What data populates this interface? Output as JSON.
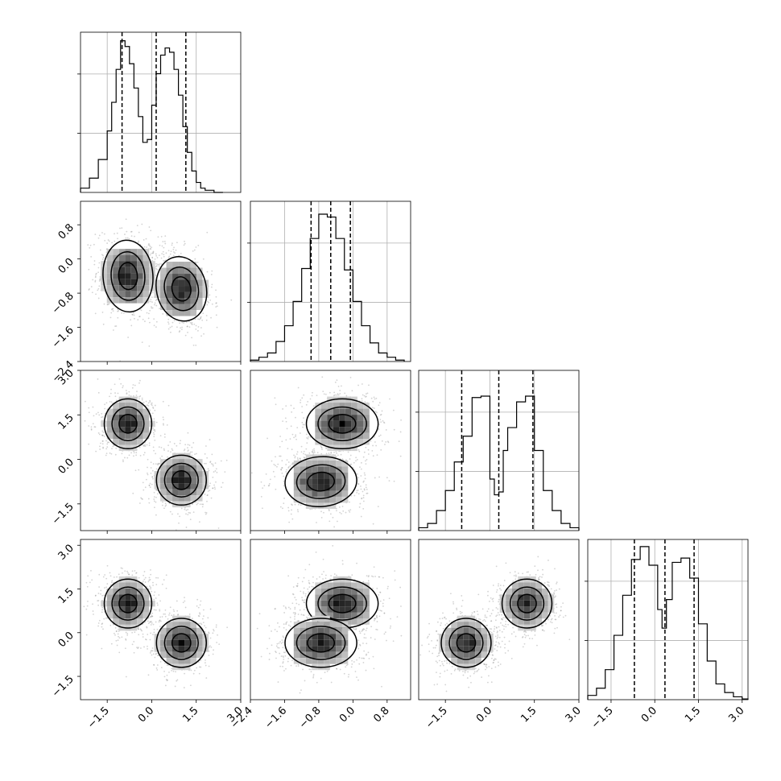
{
  "chart_data": {
    "type": "corner",
    "parameters": 4,
    "ranges": [
      [
        -2.4,
        3.0
      ],
      [
        -2.4,
        1.35
      ],
      [
        -2.4,
        3.0
      ],
      [
        -2.3,
        3.2
      ]
    ],
    "ticks": {
      "p0": [
        "−1.5",
        "0.0",
        "1.5",
        "3.0"
      ],
      "p1": [
        "−2.4",
        "−1.6",
        "−0.8",
        "0.0",
        "0.8"
      ],
      "p2": [
        "−1.5",
        "0.0",
        "1.5",
        "3.0"
      ],
      "p3": [
        "−1.5",
        "0.0",
        "1.5",
        "3.0"
      ]
    },
    "tick_values": {
      "p0": [
        -1.5,
        0.0,
        1.5,
        3.0
      ],
      "p1": [
        -2.4,
        -1.6,
        -0.8,
        0.0,
        0.8
      ],
      "p2": [
        -1.5,
        0.0,
        1.5,
        3.0
      ],
      "p3": [
        -1.5,
        0.0,
        1.5,
        3.0
      ]
    },
    "diagonal": [
      {
        "param": 0,
        "quantiles": [
          -1.0,
          0.15,
          1.15
        ],
        "bin_edges": [
          -2.4,
          -2.1,
          -1.8,
          -1.5,
          -1.35,
          -1.2,
          -1.05,
          -0.9,
          -0.75,
          -0.6,
          -0.45,
          -0.3,
          -0.15,
          0.0,
          0.15,
          0.3,
          0.45,
          0.6,
          0.75,
          0.9,
          1.05,
          1.2,
          1.35,
          1.5,
          1.65,
          1.8,
          2.1,
          2.4
        ],
        "counts": [
          0.3,
          1.0,
          2.3,
          4.3,
          6.3,
          8.6,
          10.6,
          10.2,
          9.0,
          7.3,
          5.3,
          3.5,
          3.7,
          6.1,
          8.3,
          9.6,
          10.1,
          9.8,
          8.6,
          6.8,
          4.6,
          2.8,
          1.5,
          0.7,
          0.3,
          0.15,
          0.0
        ]
      },
      {
        "param": 1,
        "quantiles": [
          -0.98,
          -0.52,
          -0.06
        ],
        "bin_edges": [
          -2.4,
          -2.2,
          -2.0,
          -1.8,
          -1.6,
          -1.4,
          -1.2,
          -1.0,
          -0.8,
          -0.6,
          -0.4,
          -0.2,
          0.0,
          0.2,
          0.4,
          0.6,
          0.8,
          1.0,
          1.2
        ],
        "counts": [
          0.1,
          0.3,
          0.6,
          1.4,
          2.5,
          4.2,
          6.5,
          8.6,
          10.3,
          10.1,
          8.6,
          6.4,
          4.2,
          2.5,
          1.3,
          0.6,
          0.3,
          0.1
        ]
      },
      {
        "param": 2,
        "quantiles": [
          -0.95,
          0.3,
          1.45
        ],
        "bin_edges": [
          -2.4,
          -2.1,
          -1.8,
          -1.5,
          -1.2,
          -0.9,
          -0.6,
          -0.3,
          0.0,
          0.15,
          0.3,
          0.45,
          0.6,
          0.9,
          1.2,
          1.5,
          1.8,
          2.1,
          2.4,
          2.7,
          3.0
        ],
        "counts": [
          0.2,
          0.5,
          1.4,
          2.8,
          4.8,
          6.6,
          9.3,
          9.4,
          3.6,
          2.5,
          2.7,
          5.6,
          7.2,
          9.0,
          9.4,
          5.6,
          2.8,
          1.4,
          0.5,
          0.2
        ]
      },
      {
        "param": 3,
        "quantiles": [
          -0.7,
          0.35,
          1.35
        ],
        "bin_edges": [
          -2.3,
          -2.0,
          -1.7,
          -1.4,
          -1.1,
          -0.8,
          -0.5,
          -0.2,
          0.1,
          0.25,
          0.4,
          0.6,
          0.9,
          1.2,
          1.5,
          1.8,
          2.1,
          2.4,
          2.7,
          3.0,
          3.2
        ],
        "counts": [
          0.3,
          0.8,
          2.1,
          4.5,
          7.3,
          9.8,
          10.7,
          9.4,
          6.3,
          5.0,
          7.0,
          9.6,
          9.9,
          8.5,
          5.3,
          2.7,
          1.1,
          0.5,
          0.2,
          0.05
        ]
      }
    ],
    "pairs": [
      {
        "x": 0,
        "y": 1,
        "modes": [
          {
            "mx": -0.8,
            "my": -0.4,
            "sx": 0.42,
            "sy": 0.42,
            "r": -0.1
          },
          {
            "mx": 1.0,
            "my": -0.7,
            "sx": 0.42,
            "sy": 0.38,
            "r": -0.3
          }
        ]
      },
      {
        "x": 0,
        "y": 2,
        "modes": [
          {
            "mx": -0.8,
            "my": 1.2,
            "sx": 0.4,
            "sy": 0.42,
            "r": 0.0
          },
          {
            "mx": 1.0,
            "my": -0.7,
            "sx": 0.42,
            "sy": 0.42,
            "r": 0.0
          }
        ]
      },
      {
        "x": 1,
        "y": 2,
        "modes": [
          {
            "mx": -0.25,
            "my": 1.2,
            "sx": 0.42,
            "sy": 0.42,
            "r": 0.0
          },
          {
            "mx": -0.75,
            "my": -0.75,
            "sx": 0.42,
            "sy": 0.42,
            "r": -0.1
          }
        ]
      },
      {
        "x": 0,
        "y": 3,
        "modes": [
          {
            "mx": -0.8,
            "my": 1.0,
            "sx": 0.4,
            "sy": 0.42,
            "r": 0.0
          },
          {
            "mx": 1.0,
            "my": -0.35,
            "sx": 0.42,
            "sy": 0.42,
            "r": 0.0
          }
        ]
      },
      {
        "x": 1,
        "y": 3,
        "modes": [
          {
            "mx": -0.25,
            "my": 1.0,
            "sx": 0.42,
            "sy": 0.42,
            "r": 0.0
          },
          {
            "mx": -0.75,
            "my": -0.35,
            "sx": 0.42,
            "sy": 0.42,
            "r": 0.0
          }
        ]
      },
      {
        "x": 2,
        "y": 3,
        "modes": [
          {
            "mx": 1.25,
            "my": 1.0,
            "sx": 0.42,
            "sy": 0.42,
            "r": 0.0
          },
          {
            "mx": -0.8,
            "my": -0.35,
            "sx": 0.42,
            "sy": 0.42,
            "r": 0.0
          }
        ]
      }
    ],
    "colors": {
      "hist": "#000000",
      "points": "#808080",
      "grid": "#b0b0b0"
    },
    "grid": true,
    "xlabel": "",
    "ylabel": "",
    "title": ""
  }
}
